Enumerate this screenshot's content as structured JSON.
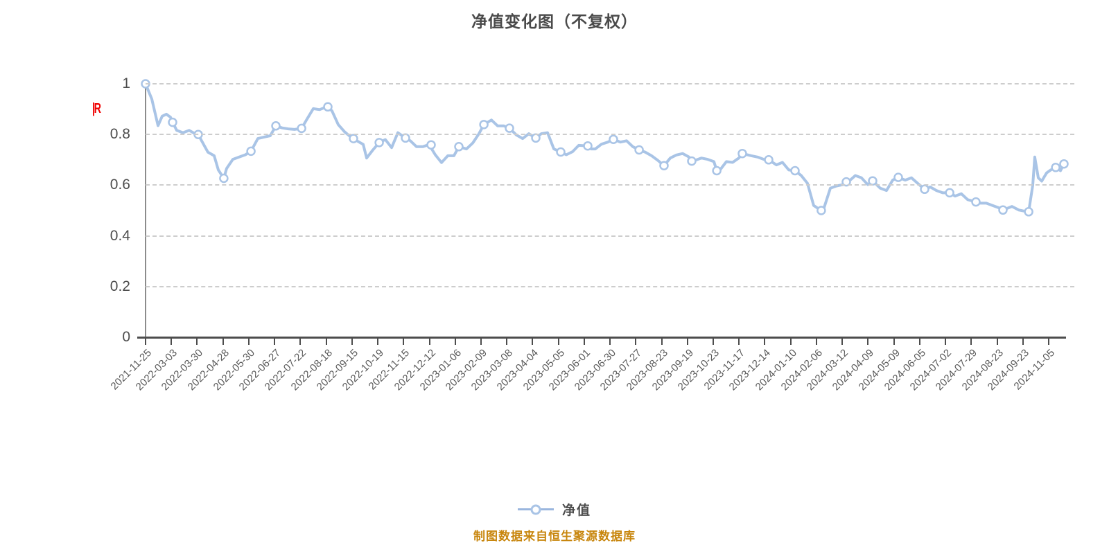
{
  "page": {
    "title": "净值变化图（不复权）",
    "red_axis_label": "|R",
    "footer": "制图数据来自恒生聚源数据库"
  },
  "legend": {
    "label": "净值"
  },
  "colors": {
    "line": "#a9c4e6",
    "marker_fill": "#ffffff",
    "marker_stroke": "#a9c4e6",
    "grid": "#cdcdcd",
    "x_axis": "#4d4d4d",
    "y_axis": "#8c8c8c",
    "title_text": "#4a4a4a",
    "tick_text": "#595959",
    "red_label": "#f00000",
    "footer_text": "#c8860d"
  },
  "chart_data": {
    "type": "line",
    "title": "净值变化图（不复权）",
    "xlabel": "",
    "ylabel": "",
    "ylim": [
      0,
      1
    ],
    "y_ticks": [
      1,
      0.8,
      0.6,
      0.4,
      0.2,
      0
    ],
    "grid": "horizontal-dashed",
    "legend_entries": [
      "净值"
    ],
    "legend_position": "bottom-center",
    "x_tick_labels": [
      "2021-11-25",
      "2022-03-03",
      "2022-03-30",
      "2022-04-28",
      "2022-05-30",
      "2022-06-27",
      "2022-07-22",
      "2022-08-18",
      "2022-09-15",
      "2022-10-19",
      "2022-11-15",
      "2022-12-12",
      "2023-01-06",
      "2023-02-09",
      "2023-03-08",
      "2023-04-04",
      "2023-05-05",
      "2023-06-01",
      "2023-06-30",
      "2023-07-27",
      "2023-08-23",
      "2023-09-19",
      "2023-10-23",
      "2023-11-17",
      "2023-12-14",
      "2024-01-10",
      "2024-02-06",
      "2024-03-12",
      "2024-04-09",
      "2024-05-09",
      "2024-06-05",
      "2024-07-02",
      "2024-07-29",
      "2024-08-23",
      "2024-09-23",
      "2024-11-05"
    ],
    "series": [
      {
        "name": "净值",
        "marker_points": [
          [
            0.0,
            1.0
          ],
          [
            0.0294,
            0.848
          ],
          [
            0.0573,
            0.8
          ],
          [
            0.0851,
            0.627
          ],
          [
            0.1146,
            0.734
          ],
          [
            0.1417,
            0.834
          ],
          [
            0.1696,
            0.824
          ],
          [
            0.1982,
            0.909
          ],
          [
            0.2261,
            0.784
          ],
          [
            0.254,
            0.768
          ],
          [
            0.2826,
            0.786
          ],
          [
            0.3105,
            0.759
          ],
          [
            0.3406,
            0.752
          ],
          [
            0.3678,
            0.839
          ],
          [
            0.3956,
            0.825
          ],
          [
            0.4243,
            0.786
          ],
          [
            0.4514,
            0.731
          ],
          [
            0.4808,
            0.755
          ],
          [
            0.5087,
            0.781
          ],
          [
            0.5366,
            0.739
          ],
          [
            0.5637,
            0.677
          ],
          [
            0.5938,
            0.695
          ],
          [
            0.621,
            0.657
          ],
          [
            0.6488,
            0.725
          ],
          [
            0.6775,
            0.7
          ],
          [
            0.7061,
            0.657
          ],
          [
            0.7347,
            0.5
          ],
          [
            0.7619,
            0.613
          ],
          [
            0.7905,
            0.617
          ],
          [
            0.8184,
            0.631
          ],
          [
            0.847,
            0.584
          ],
          [
            0.8742,
            0.57
          ],
          [
            0.9028,
            0.534
          ],
          [
            0.9322,
            0.502
          ],
          [
            0.9601,
            0.495
          ],
          [
            0.9895,
            0.67
          ],
          [
            0.9985,
            0.684
          ]
        ],
        "line_points": [
          [
            0.0,
            1.0
          ],
          [
            0.0068,
            0.94
          ],
          [
            0.0136,
            0.835
          ],
          [
            0.0181,
            0.872
          ],
          [
            0.0226,
            0.88
          ],
          [
            0.0271,
            0.868
          ],
          [
            0.0294,
            0.848
          ],
          [
            0.0339,
            0.816
          ],
          [
            0.0407,
            0.807
          ],
          [
            0.0475,
            0.816
          ],
          [
            0.0543,
            0.802
          ],
          [
            0.0573,
            0.8
          ],
          [
            0.061,
            0.775
          ],
          [
            0.0678,
            0.73
          ],
          [
            0.0746,
            0.716
          ],
          [
            0.0791,
            0.66
          ],
          [
            0.0851,
            0.627
          ],
          [
            0.0882,
            0.666
          ],
          [
            0.0949,
            0.702
          ],
          [
            0.1017,
            0.711
          ],
          [
            0.1085,
            0.72
          ],
          [
            0.1146,
            0.734
          ],
          [
            0.1221,
            0.784
          ],
          [
            0.1289,
            0.79
          ],
          [
            0.1356,
            0.795
          ],
          [
            0.1417,
            0.834
          ],
          [
            0.1485,
            0.826
          ],
          [
            0.1552,
            0.822
          ],
          [
            0.162,
            0.82
          ],
          [
            0.1696,
            0.824
          ],
          [
            0.1756,
            0.861
          ],
          [
            0.1824,
            0.902
          ],
          [
            0.1892,
            0.898
          ],
          [
            0.1959,
            0.908
          ],
          [
            0.1982,
            0.909
          ],
          [
            0.2027,
            0.893
          ],
          [
            0.2095,
            0.839
          ],
          [
            0.2163,
            0.811
          ],
          [
            0.2231,
            0.79
          ],
          [
            0.2261,
            0.784
          ],
          [
            0.2298,
            0.775
          ],
          [
            0.2366,
            0.761
          ],
          [
            0.2404,
            0.707
          ],
          [
            0.2472,
            0.739
          ],
          [
            0.254,
            0.768
          ],
          [
            0.2607,
            0.78
          ],
          [
            0.2675,
            0.748
          ],
          [
            0.2743,
            0.807
          ],
          [
            0.2826,
            0.786
          ],
          [
            0.2879,
            0.775
          ],
          [
            0.2946,
            0.752
          ],
          [
            0.3014,
            0.752
          ],
          [
            0.3082,
            0.76
          ],
          [
            0.315,
            0.72
          ],
          [
            0.3218,
            0.689
          ],
          [
            0.3286,
            0.716
          ],
          [
            0.3353,
            0.716
          ],
          [
            0.3406,
            0.752
          ],
          [
            0.3489,
            0.743
          ],
          [
            0.3557,
            0.766
          ],
          [
            0.3625,
            0.803
          ],
          [
            0.3678,
            0.839
          ],
          [
            0.376,
            0.857
          ],
          [
            0.3828,
            0.834
          ],
          [
            0.3896,
            0.834
          ],
          [
            0.3956,
            0.825
          ],
          [
            0.4032,
            0.798
          ],
          [
            0.41,
            0.784
          ],
          [
            0.4167,
            0.803
          ],
          [
            0.4243,
            0.786
          ],
          [
            0.4303,
            0.803
          ],
          [
            0.4371,
            0.807
          ],
          [
            0.4439,
            0.743
          ],
          [
            0.4514,
            0.731
          ],
          [
            0.4574,
            0.72
          ],
          [
            0.4642,
            0.732
          ],
          [
            0.471,
            0.757
          ],
          [
            0.4808,
            0.755
          ],
          [
            0.4845,
            0.743
          ],
          [
            0.489,
            0.743
          ],
          [
            0.4958,
            0.762
          ],
          [
            0.5026,
            0.77
          ],
          [
            0.5087,
            0.781
          ],
          [
            0.5162,
            0.77
          ],
          [
            0.523,
            0.775
          ],
          [
            0.5298,
            0.752
          ],
          [
            0.5366,
            0.739
          ],
          [
            0.5433,
            0.73
          ],
          [
            0.5501,
            0.716
          ],
          [
            0.5569,
            0.698
          ],
          [
            0.5637,
            0.677
          ],
          [
            0.5705,
            0.707
          ],
          [
            0.5772,
            0.719
          ],
          [
            0.584,
            0.725
          ],
          [
            0.5908,
            0.711
          ],
          [
            0.5938,
            0.695
          ],
          [
            0.5976,
            0.698
          ],
          [
            0.6043,
            0.707
          ],
          [
            0.6111,
            0.702
          ],
          [
            0.6179,
            0.693
          ],
          [
            0.621,
            0.657
          ],
          [
            0.6247,
            0.661
          ],
          [
            0.6315,
            0.693
          ],
          [
            0.6383,
            0.69
          ],
          [
            0.6451,
            0.707
          ],
          [
            0.6488,
            0.725
          ],
          [
            0.6586,
            0.716
          ],
          [
            0.6654,
            0.711
          ],
          [
            0.6722,
            0.702
          ],
          [
            0.6775,
            0.7
          ],
          [
            0.6858,
            0.68
          ],
          [
            0.6925,
            0.69
          ],
          [
            0.6993,
            0.66
          ],
          [
            0.7061,
            0.657
          ],
          [
            0.7129,
            0.638
          ],
          [
            0.7197,
            0.607
          ],
          [
            0.7264,
            0.52
          ],
          [
            0.7332,
            0.503
          ],
          [
            0.7347,
            0.5
          ],
          [
            0.7377,
            0.511
          ],
          [
            0.7445,
            0.588
          ],
          [
            0.7513,
            0.597
          ],
          [
            0.7581,
            0.602
          ],
          [
            0.7619,
            0.613
          ],
          [
            0.7649,
            0.616
          ],
          [
            0.7717,
            0.638
          ],
          [
            0.7784,
            0.629
          ],
          [
            0.7852,
            0.602
          ],
          [
            0.7905,
            0.617
          ],
          [
            0.7988,
            0.588
          ],
          [
            0.8056,
            0.579
          ],
          [
            0.8123,
            0.62
          ],
          [
            0.8184,
            0.631
          ],
          [
            0.8259,
            0.62
          ],
          [
            0.8327,
            0.629
          ],
          [
            0.8395,
            0.607
          ],
          [
            0.847,
            0.584
          ],
          [
            0.8531,
            0.593
          ],
          [
            0.8598,
            0.579
          ],
          [
            0.8666,
            0.57
          ],
          [
            0.8742,
            0.57
          ],
          [
            0.8802,
            0.557
          ],
          [
            0.887,
            0.566
          ],
          [
            0.8938,
            0.543
          ],
          [
            0.9028,
            0.534
          ],
          [
            0.9073,
            0.529
          ],
          [
            0.9141,
            0.529
          ],
          [
            0.9209,
            0.52
          ],
          [
            0.9276,
            0.511
          ],
          [
            0.9322,
            0.502
          ],
          [
            0.942,
            0.516
          ],
          [
            0.9495,
            0.502
          ],
          [
            0.9548,
            0.498
          ],
          [
            0.9601,
            0.495
          ],
          [
            0.9646,
            0.6
          ],
          [
            0.9668,
            0.711
          ],
          [
            0.9706,
            0.629
          ],
          [
            0.9744,
            0.616
          ],
          [
            0.9796,
            0.648
          ],
          [
            0.9842,
            0.66
          ],
          [
            0.9895,
            0.67
          ],
          [
            0.9947,
            0.657
          ],
          [
            0.9985,
            0.684
          ]
        ]
      }
    ]
  }
}
